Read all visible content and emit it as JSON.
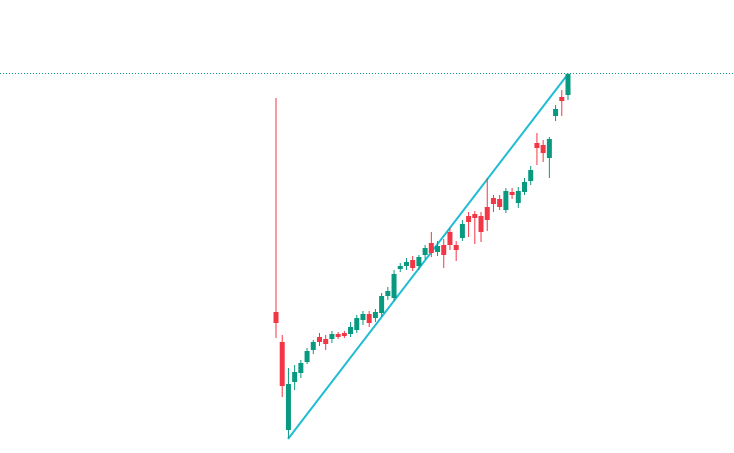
{
  "chart_data": {
    "type": "candlestick",
    "open": [
      141,
      111,
      23,
      71,
      80,
      91,
      103,
      116,
      114,
      114,
      119,
      120,
      119,
      123,
      133,
      139,
      135,
      140,
      157,
      155,
      184,
      187,
      193,
      187,
      198,
      210,
      201,
      208,
      221,
      208,
      215,
      237,
      239,
      237,
      246,
      255,
      254,
      243,
      261,
      250,
      261,
      272,
      310,
      308,
      295,
      337,
      356,
      358
    ],
    "high": [
      355,
      118,
      85,
      88,
      93,
      105,
      113,
      120,
      118,
      122,
      121,
      122,
      131,
      138,
      142,
      142,
      144,
      160,
      166,
      183,
      190,
      195,
      197,
      198,
      208,
      221,
      212,
      214,
      225,
      212,
      233,
      241,
      242,
      241,
      275,
      258,
      258,
      265,
      265,
      266,
      275,
      287,
      320,
      313,
      316,
      348,
      363,
      380
    ],
    "low": [
      115,
      56,
      15,
      63,
      75,
      89,
      99,
      107,
      103,
      110,
      114,
      115,
      116,
      120,
      128,
      126,
      131,
      136,
      153,
      152,
      181,
      183,
      182,
      183,
      194,
      196,
      197,
      185,
      203,
      192,
      212,
      216,
      209,
      211,
      222,
      241,
      243,
      240,
      254,
      245,
      258,
      268,
      288,
      291,
      275,
      332,
      337,
      353
    ],
    "close": [
      130,
      67,
      69,
      81,
      90,
      102,
      111,
      111,
      109,
      119,
      116,
      117,
      126,
      135,
      139,
      130,
      141,
      157,
      162,
      179,
      187,
      191,
      185,
      196,
      205,
      200,
      207,
      198,
      208,
      203,
      229,
      231,
      235,
      221,
      233,
      249,
      246,
      262,
      258,
      262,
      271,
      283,
      305,
      300,
      314,
      344,
      352,
      379
    ],
    "up_color": "#089981",
    "down_color": "#f23645",
    "ylim": [
      0,
      453
    ]
  }
}
